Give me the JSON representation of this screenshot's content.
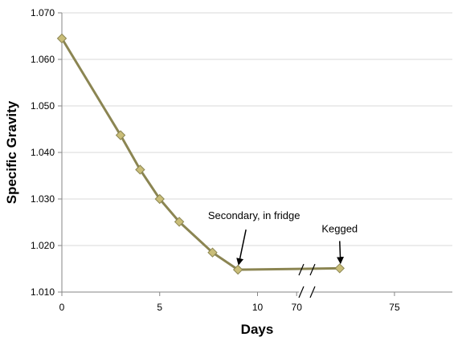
{
  "chart_data": {
    "type": "line",
    "title": "",
    "xlabel": "Days",
    "ylabel": "Specific Gravity",
    "ylim": [
      1.01,
      1.07
    ],
    "y_ticks": [
      "1.010",
      "1.020",
      "1.030",
      "1.040",
      "1.050",
      "1.060",
      "1.070"
    ],
    "x_ticks": [
      "0",
      "5",
      "10",
      "70",
      "75"
    ],
    "x_axis_break": "between 12 and 68",
    "grid": "horizontal",
    "legend": "none",
    "series": [
      {
        "x": [
          0,
          3,
          4,
          5,
          6,
          7.7,
          9,
          72.2
        ],
        "y": [
          1.0645,
          1.0437,
          1.0363,
          1.03,
          1.0251,
          1.0185,
          1.0148,
          1.0151
        ]
      }
    ],
    "annotations": [
      {
        "text": "Secondary, in fridge",
        "x": 9,
        "y": 1.0148
      },
      {
        "text": "Kegged",
        "x": 72.2,
        "y": 1.0151
      }
    ],
    "colors": {
      "line": "#8b8552",
      "marker_fill": "#c9bd78",
      "marker_stroke": "#8b8552",
      "grid": "#d9d9d9",
      "axis": "#868686"
    }
  }
}
